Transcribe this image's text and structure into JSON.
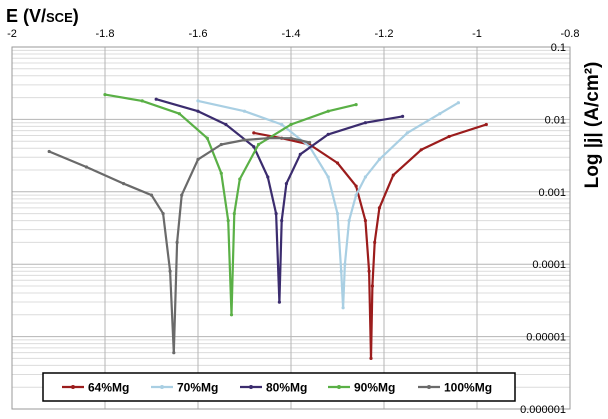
{
  "chart_data": {
    "type": "line",
    "xlabel_main": "E (V/",
    "xlabel_sub": "SCE",
    "xlabel_end": ")",
    "ylabel": "Log |j| (A/cm²)",
    "xlim": [
      -2,
      -0.8
    ],
    "ylim_log": [
      1e-06,
      0.1
    ],
    "x_ticks": [
      "-2",
      "-1.8",
      "-1.6",
      "-1.4",
      "-1.2",
      "-1",
      "-0.8"
    ],
    "y_ticks": [
      "0.000001",
      "0.00001",
      "0.0001",
      "0.001",
      "0.01",
      "0.1"
    ],
    "grid": true,
    "legend_position": "bottom",
    "series": [
      {
        "name": "64%Mg",
        "color": "#9b1c1c",
        "points": [
          [
            -1.48,
            0.0065
          ],
          [
            -1.42,
            0.0055
          ],
          [
            -1.36,
            0.0045
          ],
          [
            -1.3,
            0.0025
          ],
          [
            -1.26,
            0.0012
          ],
          [
            -1.24,
            0.0004
          ],
          [
            -1.232,
            8e-05
          ],
          [
            -1.228,
            5e-06
          ],
          [
            -1.225,
            5e-05
          ],
          [
            -1.22,
            0.0002
          ],
          [
            -1.21,
            0.0006
          ],
          [
            -1.18,
            0.0017
          ],
          [
            -1.12,
            0.0038
          ],
          [
            -1.06,
            0.0058
          ],
          [
            -0.98,
            0.0085
          ]
        ]
      },
      {
        "name": "70%Mg",
        "color": "#a9cfe3",
        "points": [
          [
            -1.6,
            0.018
          ],
          [
            -1.5,
            0.013
          ],
          [
            -1.42,
            0.0085
          ],
          [
            -1.36,
            0.0042
          ],
          [
            -1.32,
            0.0016
          ],
          [
            -1.3,
            0.0005
          ],
          [
            -1.292,
            8e-05
          ],
          [
            -1.288,
            2.5e-05
          ],
          [
            -1.284,
            0.0001
          ],
          [
            -1.275,
            0.0004
          ],
          [
            -1.26,
            0.0009
          ],
          [
            -1.24,
            0.0016
          ],
          [
            -1.21,
            0.0028
          ],
          [
            -1.15,
            0.0065
          ],
          [
            -1.08,
            0.012
          ],
          [
            -1.04,
            0.017
          ]
        ]
      },
      {
        "name": "80%Mg",
        "color": "#3b2c6e",
        "points": [
          [
            -1.69,
            0.019
          ],
          [
            -1.6,
            0.013
          ],
          [
            -1.54,
            0.0085
          ],
          [
            -1.48,
            0.0042
          ],
          [
            -1.45,
            0.0016
          ],
          [
            -1.432,
            0.0005
          ],
          [
            -1.425,
            3e-05
          ],
          [
            -1.42,
            0.0004
          ],
          [
            -1.41,
            0.0013
          ],
          [
            -1.38,
            0.0033
          ],
          [
            -1.32,
            0.0062
          ],
          [
            -1.24,
            0.009
          ],
          [
            -1.16,
            0.011
          ]
        ]
      },
      {
        "name": "90%Mg",
        "color": "#5ab046",
        "points": [
          [
            -1.8,
            0.022
          ],
          [
            -1.72,
            0.018
          ],
          [
            -1.64,
            0.012
          ],
          [
            -1.58,
            0.0055
          ],
          [
            -1.55,
            0.0018
          ],
          [
            -1.535,
            0.0004
          ],
          [
            -1.528,
            2e-05
          ],
          [
            -1.522,
            0.0005
          ],
          [
            -1.51,
            0.0015
          ],
          [
            -1.47,
            0.0045
          ],
          [
            -1.4,
            0.0085
          ],
          [
            -1.32,
            0.013
          ],
          [
            -1.26,
            0.016
          ]
        ]
      },
      {
        "name": "100%Mg",
        "color": "#6a6a6a",
        "points": [
          [
            -1.92,
            0.0036
          ],
          [
            -1.84,
            0.0022
          ],
          [
            -1.76,
            0.0013
          ],
          [
            -1.7,
            0.0009
          ],
          [
            -1.675,
            0.0005
          ],
          [
            -1.66,
            8e-05
          ],
          [
            -1.652,
            6e-06
          ],
          [
            -1.645,
            0.0002
          ],
          [
            -1.635,
            0.0009
          ],
          [
            -1.6,
            0.0028
          ],
          [
            -1.55,
            0.0045
          ],
          [
            -1.5,
            0.0052
          ],
          [
            -1.45,
            0.0055
          ],
          [
            -1.4,
            0.0055
          ],
          [
            -1.36,
            0.0048
          ]
        ]
      }
    ]
  }
}
